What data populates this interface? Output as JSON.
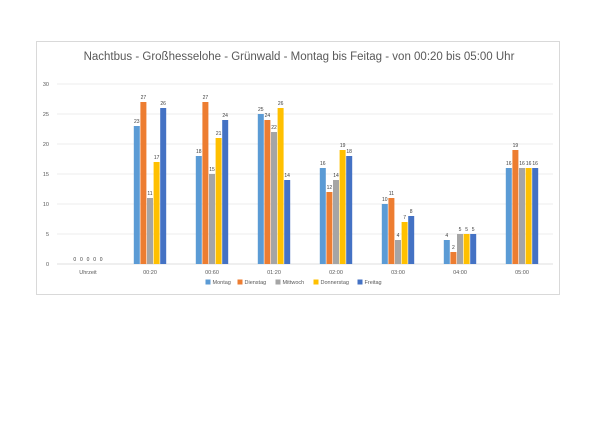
{
  "chart_data": {
    "type": "bar",
    "title": "Nachtbus - Großhesselohe - Grünwald - Montag bis Feitag - von 00:20 bis 05:00 Uhr",
    "categories": [
      "Uhrzeit",
      "00:20",
      "00:60",
      "01:20",
      "02:00",
      "03:00",
      "04:00",
      "05:00"
    ],
    "series": [
      {
        "name": "Montag",
        "color": "#5b9bd5",
        "values": [
          0,
          23,
          18,
          25,
          16,
          10,
          4,
          16
        ]
      },
      {
        "name": "Dienstag",
        "color": "#ed7d31",
        "values": [
          0,
          27,
          27,
          24,
          12,
          11,
          2,
          19
        ]
      },
      {
        "name": "Mittwoch",
        "color": "#a5a5a5",
        "values": [
          0,
          11,
          15,
          22,
          14,
          4,
          5,
          16
        ]
      },
      {
        "name": "Donnerstag",
        "color": "#ffc000",
        "values": [
          0,
          17,
          21,
          26,
          19,
          7,
          5,
          16
        ]
      },
      {
        "name": "Freitag",
        "color": "#4472c4",
        "values": [
          0,
          26,
          24,
          14,
          18,
          8,
          5,
          16
        ]
      }
    ],
    "ylim": [
      0,
      30
    ],
    "yticks": [
      "0",
      "5",
      "10",
      "15",
      "20",
      "25",
      "30"
    ],
    "grid": true,
    "legend": "bottom",
    "data_labels": true
  }
}
